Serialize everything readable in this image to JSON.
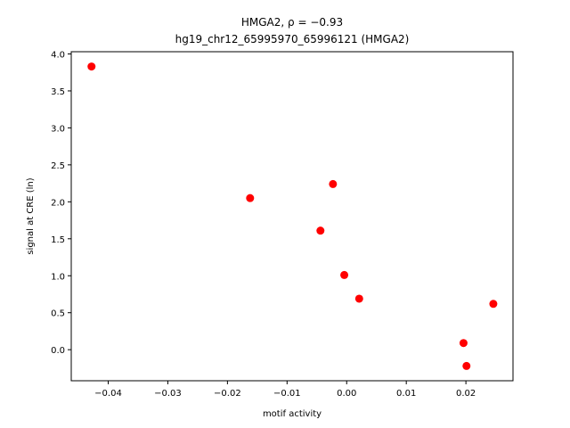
{
  "chart_data": {
    "type": "scatter",
    "title_line1": "HMGA2, ρ = −0.93",
    "title_line2": "hg19_chr12_65995970_65996121 (HMGA2)",
    "xlabel": "motif activity",
    "ylabel": "signal at CRE (ln)",
    "xlim": [
      -0.0462,
      0.0279
    ],
    "ylim": [
      -0.42,
      4.03
    ],
    "x_ticks": [
      -0.04,
      -0.03,
      -0.02,
      -0.01,
      0.0,
      0.01,
      0.02
    ],
    "x_tick_labels": [
      "−0.04",
      "−0.03",
      "−0.02",
      "−0.01",
      "0.00",
      "0.01",
      "0.02"
    ],
    "y_ticks": [
      0.0,
      0.5,
      1.0,
      1.5,
      2.0,
      2.5,
      3.0,
      3.5,
      4.0
    ],
    "y_tick_labels": [
      "0.0",
      "0.5",
      "1.0",
      "1.5",
      "2.0",
      "2.5",
      "3.0",
      "3.5",
      "4.0"
    ],
    "grid": false,
    "legend": "none",
    "marker_color": "#ff0000",
    "points": [
      {
        "x": -0.0428,
        "y": 3.83
      },
      {
        "x": -0.0162,
        "y": 2.05
      },
      {
        "x": -0.0023,
        "y": 2.24
      },
      {
        "x": -0.0044,
        "y": 1.61
      },
      {
        "x": -0.0004,
        "y": 1.01
      },
      {
        "x": 0.0021,
        "y": 0.69
      },
      {
        "x": 0.0246,
        "y": 0.62
      },
      {
        "x": 0.0196,
        "y": 0.09
      },
      {
        "x": 0.0201,
        "y": -0.22
      }
    ]
  }
}
